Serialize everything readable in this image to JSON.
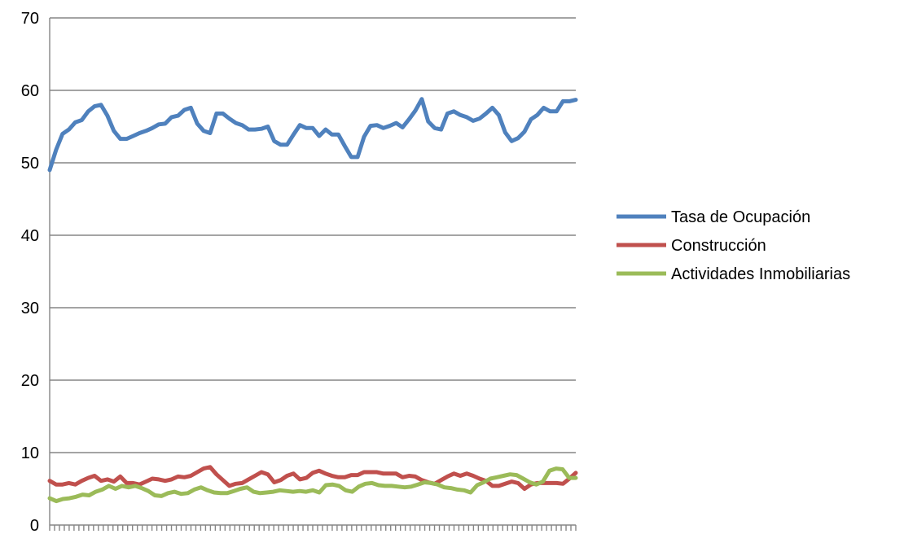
{
  "chart_data": {
    "type": "line",
    "title": "",
    "xlabel": "",
    "ylabel": "",
    "ylim": [
      0,
      70
    ],
    "y_ticks": [
      0,
      10,
      20,
      30,
      40,
      50,
      60,
      70
    ],
    "x_count": 109,
    "grid": "horizontal",
    "legend": {
      "placement": "right"
    },
    "series": [
      {
        "name": "Tasa de Ocupación",
        "color": "#4F81BD",
        "values": [
          49.0,
          51.8,
          54.0,
          54.6,
          55.6,
          55.9,
          57.1,
          57.8,
          58.0,
          56.5,
          54.4,
          53.3,
          53.3,
          53.7,
          54.1,
          54.4,
          54.8,
          55.3,
          55.4,
          56.3,
          56.5,
          57.3,
          57.6,
          55.4,
          54.4,
          54.1,
          56.8,
          56.8,
          56.1,
          55.5,
          55.2,
          54.6,
          54.6,
          54.7,
          55.0,
          53.0,
          52.5,
          52.5,
          53.9,
          55.2,
          54.8,
          54.8,
          53.7,
          54.6,
          53.9,
          53.9,
          52.3,
          50.8,
          50.8,
          53.6,
          55.1,
          55.2,
          54.8,
          55.1,
          55.5,
          54.9,
          56.0,
          57.2,
          58.8,
          55.7,
          54.8,
          54.6,
          56.8,
          57.1,
          56.6,
          56.3,
          55.8,
          56.1,
          56.8,
          57.6,
          56.6,
          54.2,
          53.0,
          53.4,
          54.3,
          56.0,
          56.6,
          57.6,
          57.1,
          57.1,
          58.5,
          58.5,
          58.7
        ]
      },
      {
        "name": "Construcción",
        "color": "#C0504D",
        "values": [
          6.1,
          5.6,
          5.6,
          5.8,
          5.6,
          6.1,
          6.5,
          6.8,
          6.1,
          6.3,
          6.0,
          6.7,
          5.8,
          5.8,
          5.6,
          6.0,
          6.4,
          6.3,
          6.1,
          6.3,
          6.7,
          6.6,
          6.8,
          7.3,
          7.8,
          8.0,
          7.0,
          6.2,
          5.4,
          5.7,
          5.8,
          6.3,
          6.8,
          7.3,
          7.0,
          5.9,
          6.2,
          6.8,
          7.1,
          6.3,
          6.5,
          7.2,
          7.5,
          7.1,
          6.8,
          6.6,
          6.6,
          6.9,
          6.9,
          7.3,
          7.3,
          7.3,
          7.1,
          7.1,
          7.1,
          6.6,
          6.8,
          6.7,
          6.2,
          5.9,
          5.7,
          6.2,
          6.7,
          7.1,
          6.8,
          7.1,
          6.8,
          6.4,
          6.1,
          5.4,
          5.4,
          5.7,
          6.0,
          5.8,
          5.0,
          5.6,
          5.8,
          5.8,
          5.8,
          5.8,
          5.7,
          6.4,
          7.2
        ]
      },
      {
        "name": "Actividades Inmobiliarias",
        "color": "#9BBB59",
        "values": [
          3.7,
          3.3,
          3.6,
          3.7,
          3.9,
          4.2,
          4.1,
          4.6,
          4.9,
          5.4,
          5.0,
          5.4,
          5.2,
          5.4,
          5.1,
          4.7,
          4.1,
          4.0,
          4.4,
          4.6,
          4.3,
          4.4,
          4.9,
          5.2,
          4.8,
          4.5,
          4.4,
          4.4,
          4.7,
          5.0,
          5.2,
          4.6,
          4.4,
          4.5,
          4.6,
          4.8,
          4.7,
          4.6,
          4.7,
          4.6,
          4.8,
          4.5,
          5.5,
          5.6,
          5.4,
          4.8,
          4.6,
          5.3,
          5.7,
          5.8,
          5.5,
          5.4,
          5.4,
          5.3,
          5.2,
          5.3,
          5.6,
          5.9,
          5.8,
          5.6,
          5.2,
          5.1,
          4.9,
          4.8,
          4.5,
          5.5,
          5.9,
          6.4,
          6.6,
          6.8,
          7.0,
          6.9,
          6.4,
          5.9,
          5.6,
          6.0,
          7.5,
          7.8,
          7.7,
          6.5,
          6.5
        ]
      }
    ]
  }
}
